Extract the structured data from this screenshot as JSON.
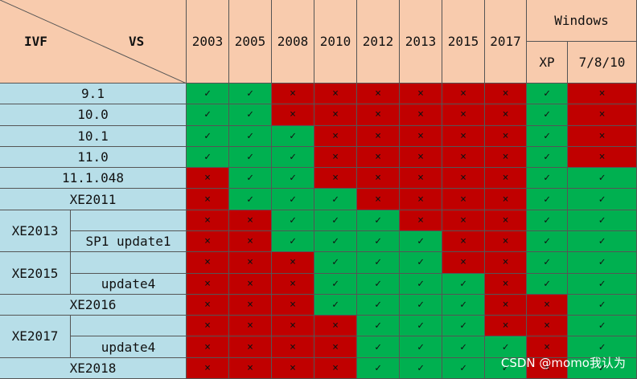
{
  "header": {
    "corner_left": "IVF",
    "corner_right": "VS",
    "columns": [
      "2003",
      "2005",
      "2008",
      "2010",
      "2012",
      "2013",
      "2015",
      "2017"
    ],
    "group": "Windows",
    "group_columns": [
      "XP",
      "7/8/10"
    ]
  },
  "symbols": {
    "yes": "✓",
    "no": "×"
  },
  "colors": {
    "yes": "#00b050",
    "no": "#c00000"
  },
  "rows": [
    {
      "label": "9.1",
      "cells": [
        "yes",
        "yes",
        "no",
        "no",
        "no",
        "no",
        "no",
        "no",
        "yes",
        "no"
      ]
    },
    {
      "label": "10.0",
      "cells": [
        "yes",
        "yes",
        "no",
        "no",
        "no",
        "no",
        "no",
        "no",
        "yes",
        "no"
      ]
    },
    {
      "label": "10.1",
      "cells": [
        "yes",
        "yes",
        "yes",
        "no",
        "no",
        "no",
        "no",
        "no",
        "yes",
        "no"
      ]
    },
    {
      "label": "11.0",
      "cells": [
        "yes",
        "yes",
        "yes",
        "no",
        "no",
        "no",
        "no",
        "no",
        "yes",
        "no"
      ]
    },
    {
      "label": "11.1.048",
      "cells": [
        "no",
        "yes",
        "yes",
        "no",
        "no",
        "no",
        "no",
        "no",
        "yes",
        "yes"
      ]
    },
    {
      "label": "XE2011",
      "cells": [
        "no",
        "yes",
        "yes",
        "yes",
        "no",
        "no",
        "no",
        "no",
        "yes",
        "yes"
      ]
    },
    {
      "group": "XE2013",
      "cells": [
        "no",
        "no",
        "yes",
        "yes",
        "yes",
        "no",
        "no",
        "no",
        "yes",
        "yes"
      ]
    },
    {
      "sublabel": "SP1 update1",
      "cells": [
        "no",
        "no",
        "yes",
        "yes",
        "yes",
        "yes",
        "no",
        "no",
        "yes",
        "yes"
      ]
    },
    {
      "group": "XE2015",
      "cells": [
        "no",
        "no",
        "no",
        "yes",
        "yes",
        "yes",
        "no",
        "no",
        "yes",
        "yes"
      ]
    },
    {
      "sublabel": "update4",
      "cells": [
        "no",
        "no",
        "no",
        "yes",
        "yes",
        "yes",
        "yes",
        "no",
        "yes",
        "yes"
      ]
    },
    {
      "label": "XE2016",
      "cells": [
        "no",
        "no",
        "no",
        "yes",
        "yes",
        "yes",
        "yes",
        "no",
        "no",
        "yes"
      ]
    },
    {
      "group": "XE2017",
      "cells": [
        "no",
        "no",
        "no",
        "no",
        "yes",
        "yes",
        "yes",
        "no",
        "no",
        "yes"
      ]
    },
    {
      "sublabel": "update4",
      "cells": [
        "no",
        "no",
        "no",
        "no",
        "yes",
        "yes",
        "yes",
        "yes",
        "no",
        "yes"
      ]
    },
    {
      "label": "XE2018",
      "cells": [
        "no",
        "no",
        "no",
        "no",
        "yes",
        "yes",
        "yes",
        "yes",
        "no",
        "yes"
      ]
    }
  ],
  "watermark": "CSDN @momo我认为"
}
